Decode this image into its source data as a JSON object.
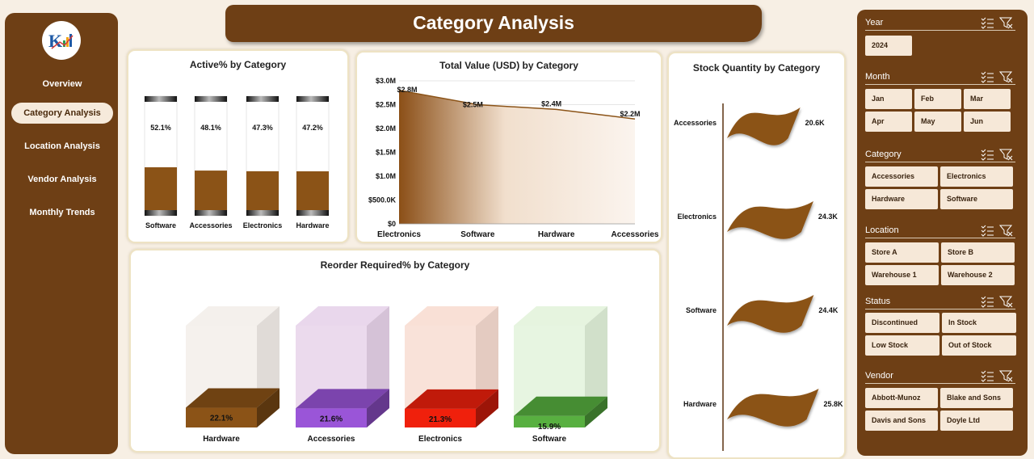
{
  "nav": {
    "items": [
      {
        "label": "Overview"
      },
      {
        "label": "Category Analysis",
        "active": true
      },
      {
        "label": "Location Analysis"
      },
      {
        "label": "Vendor Analysis"
      },
      {
        "label": "Monthly Trends"
      }
    ]
  },
  "header": {
    "title": "Category Analysis"
  },
  "colors": {
    "brand": "#6e3f15",
    "accent_fill": "#8b5317",
    "panel_button": "#f6e8d8",
    "bar_empty": "#ffffff"
  },
  "active_chart": {
    "title": "Active% by Category",
    "chart_data": {
      "type": "bar",
      "categories": [
        "Software",
        "Accessories",
        "Electronics",
        "Hardware"
      ],
      "values": [
        52.1,
        48.1,
        47.3,
        47.2
      ],
      "labels": [
        "52.1%",
        "48.1%",
        "47.3%",
        "47.2%"
      ],
      "ylim": [
        0,
        100
      ]
    }
  },
  "value_chart": {
    "title": "Total Value (USD) by Category",
    "chart_data": {
      "type": "area",
      "categories": [
        "Electronics",
        "Software",
        "Hardware",
        "Accessories"
      ],
      "values": [
        2800000,
        2500000,
        2400000,
        2200000
      ],
      "labels": [
        "$2.8M",
        "$2.5M",
        "$2.4M",
        "$2.2M"
      ],
      "yticks": [
        "$0",
        "$500.0K",
        "$1.0M",
        "$1.5M",
        "$2.0M",
        "$2.5M",
        "$3.0M"
      ],
      "ylim": [
        0,
        3000000
      ],
      "grid": true
    }
  },
  "stock_chart": {
    "title": "Stock Quantity by Category",
    "chart_data": {
      "type": "bar",
      "categories": [
        "Accessories",
        "Electronics",
        "Software",
        "Hardware"
      ],
      "values": [
        20600,
        24300,
        24400,
        25800
      ],
      "labels": [
        "20.6K",
        "24.3K",
        "24.4K",
        "25.8K"
      ]
    }
  },
  "reorder_chart": {
    "title": "Reorder Required% by Category",
    "chart_data": {
      "type": "bar",
      "categories": [
        "Hardware",
        "Accessories",
        "Electronics",
        "Software"
      ],
      "values": [
        22.1,
        21.6,
        21.3,
        15.9
      ],
      "labels": [
        "22.1%",
        "21.6%",
        "21.3%",
        "15.9%"
      ],
      "ylim": [
        0,
        100
      ],
      "colors": [
        "#8b5317",
        "#9a55d8",
        "#f0200c",
        "#58b040"
      ],
      "glass_colors": [
        "#f3eeea",
        "#e7d3ea",
        "#f8ddd2",
        "#e3f3dc"
      ]
    }
  },
  "slicers": [
    {
      "label": "Year",
      "items": [
        "2024"
      ]
    },
    {
      "label": "Month",
      "items": [
        "Jan",
        "Feb",
        "Mar",
        "Apr",
        "May",
        "Jun"
      ]
    },
    {
      "label": "Category",
      "items": [
        "Accessories",
        "Electronics",
        "Hardware",
        "Software"
      ]
    },
    {
      "label": "Location",
      "items": [
        "Store A",
        "Store B",
        "Warehouse 1",
        "Warehouse 2"
      ]
    },
    {
      "label": "Status",
      "items": [
        "Discontinued",
        "In Stock",
        "Low Stock",
        "Out of Stock"
      ]
    },
    {
      "label": "Vendor",
      "items": [
        "Abbott-Munoz",
        "Blake and Sons",
        "Davis and Sons",
        "Doyle Ltd"
      ]
    }
  ]
}
